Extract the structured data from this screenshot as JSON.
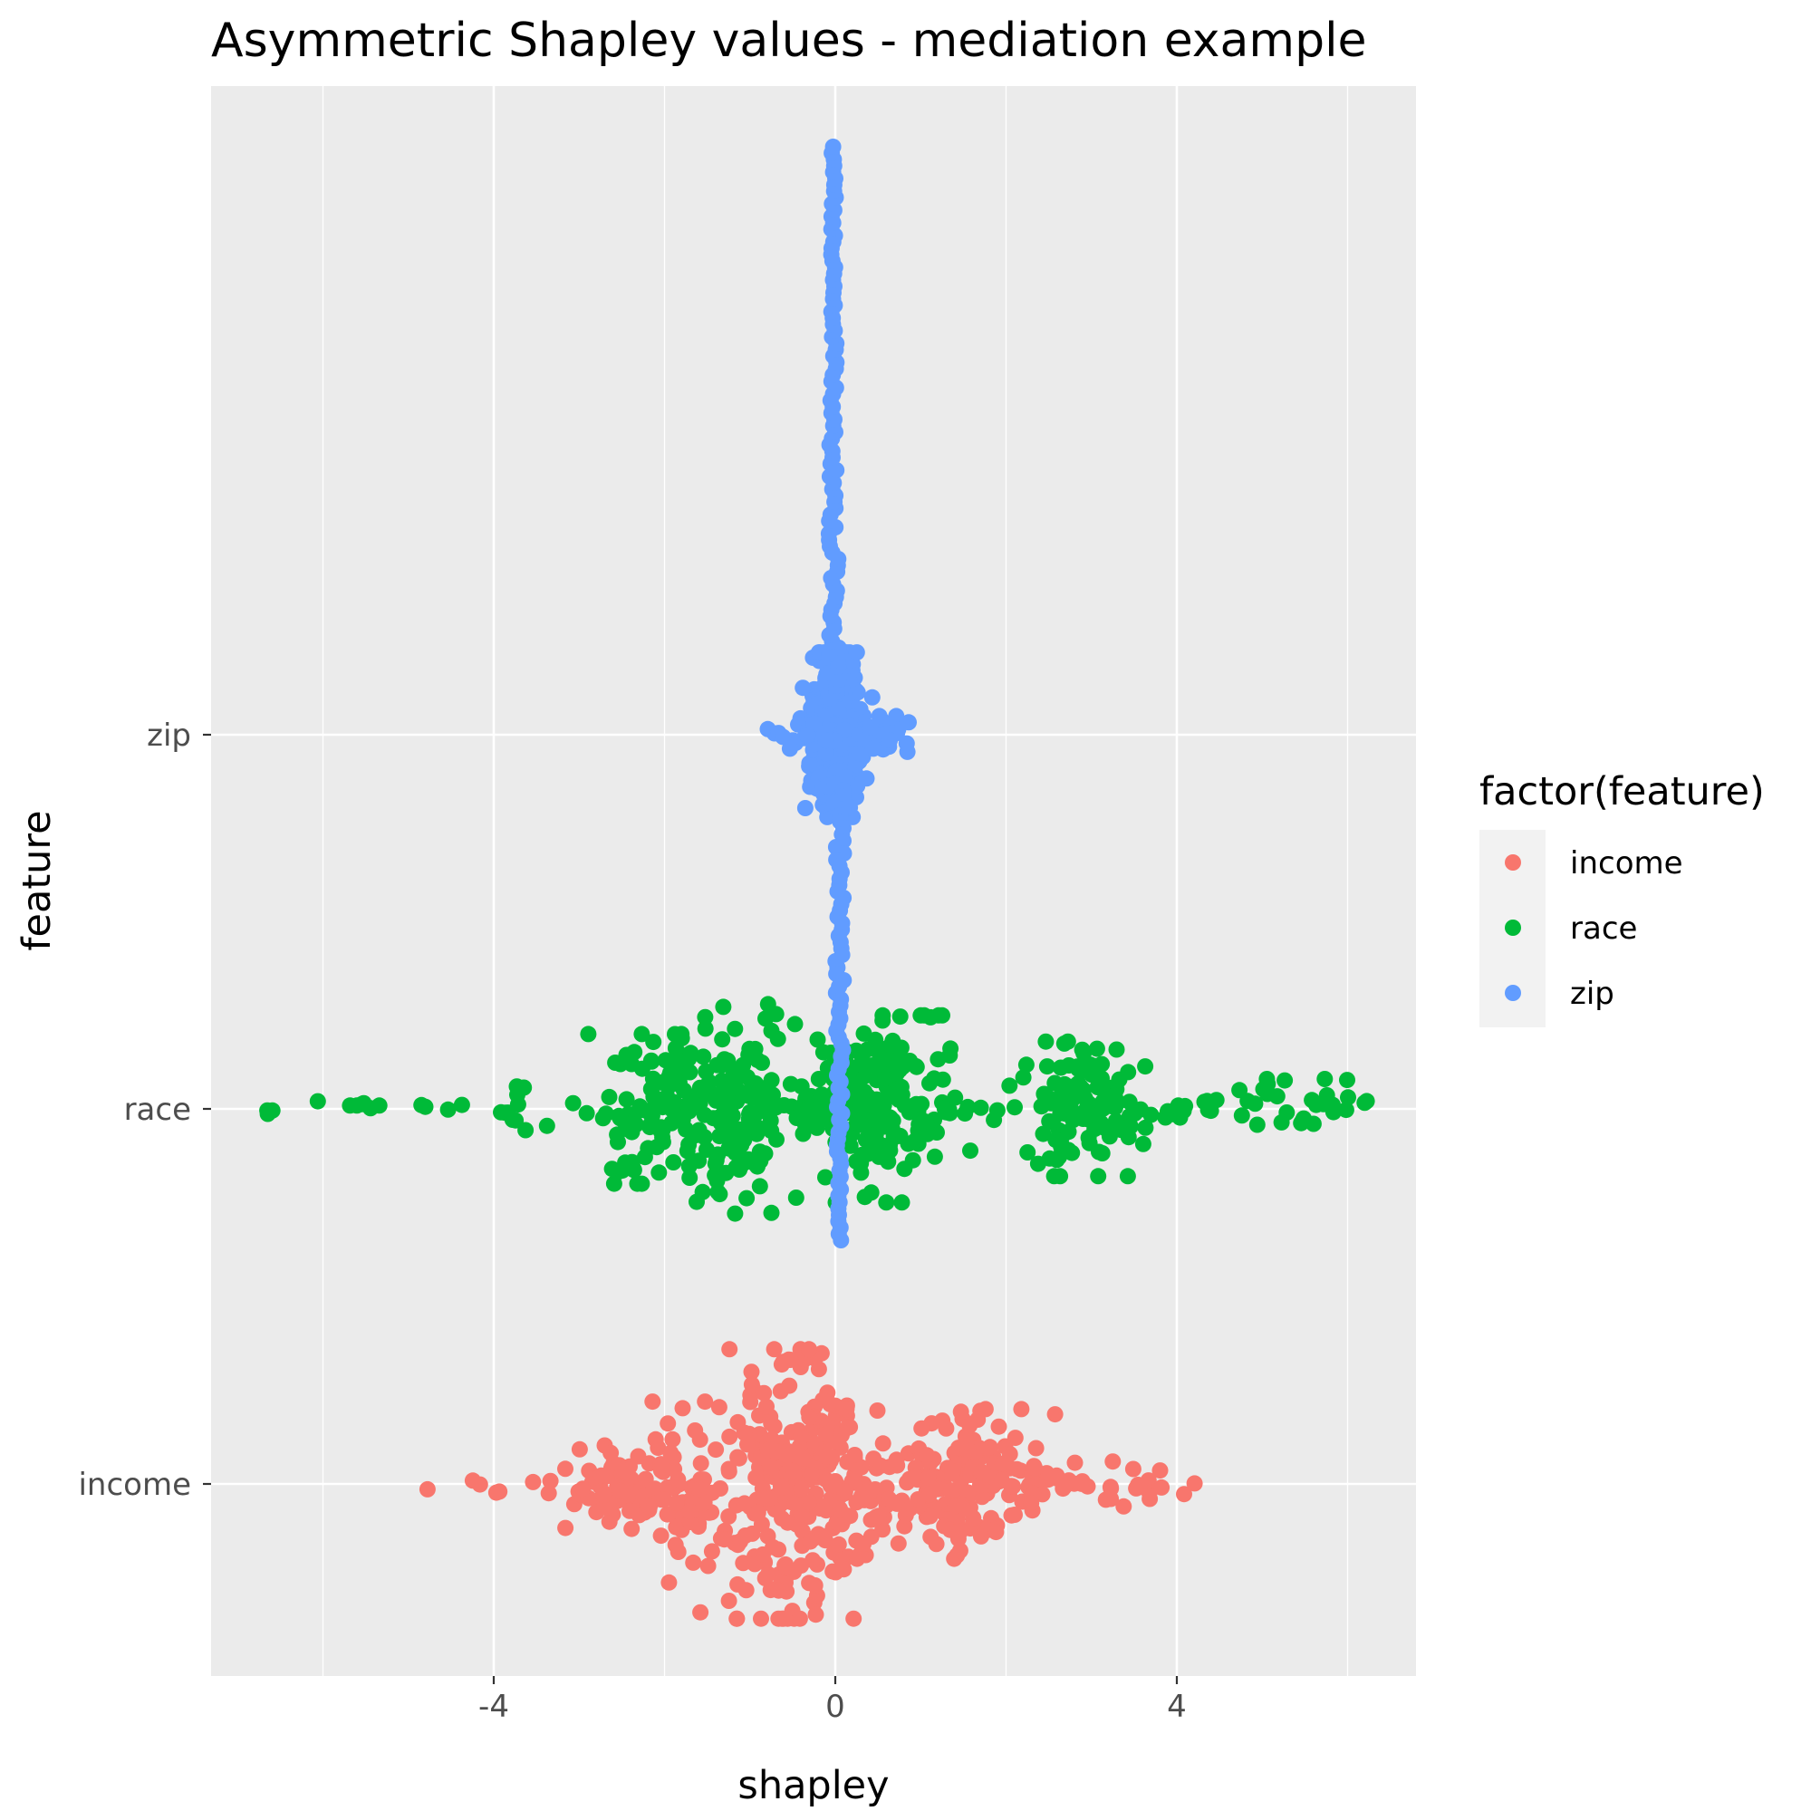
{
  "chart_data": {
    "type": "scatter",
    "title": "Asymmetric Shapley values - mediation example",
    "xlabel": "shapley",
    "ylabel": "feature",
    "x_ticks": [
      -4,
      0,
      4
    ],
    "x_tick_labels": [
      "-4",
      "0",
      "4"
    ],
    "xlim": [
      -7.3,
      6.8
    ],
    "categories": [
      "income",
      "race",
      "zip"
    ],
    "grid": true,
    "legend": {
      "title": "factor(feature)",
      "position": "right",
      "entries": [
        "income",
        "race",
        "zip"
      ]
    },
    "series": [
      {
        "name": "income",
        "color": "#F8766D",
        "category": "income",
        "clusters": [
          {
            "center": -4.8,
            "sd": 0.05,
            "n": 1,
            "spread": 0.02
          },
          {
            "center": -4.0,
            "sd": 0.15,
            "n": 4,
            "spread": 0.06
          },
          {
            "center": -3.5,
            "sd": 0.05,
            "n": 1,
            "spread": 0.02
          },
          {
            "center": -2.6,
            "sd": 0.35,
            "n": 70,
            "spread": 0.12
          },
          {
            "center": -1.6,
            "sd": 0.3,
            "n": 70,
            "spread": 0.22
          },
          {
            "center": -0.55,
            "sd": 0.35,
            "n": 220,
            "spread": 0.36
          },
          {
            "center": 0.4,
            "sd": 0.4,
            "n": 80,
            "spread": 0.2
          },
          {
            "center": 1.5,
            "sd": 0.4,
            "n": 140,
            "spread": 0.2
          },
          {
            "center": 2.6,
            "sd": 0.35,
            "n": 30,
            "spread": 0.06
          },
          {
            "center": 3.5,
            "sd": 0.25,
            "n": 14,
            "spread": 0.04
          }
        ]
      },
      {
        "name": "race",
        "color": "#00BA38",
        "category": "race",
        "clusters": [
          {
            "center": -6.6,
            "sd": 0.06,
            "n": 3,
            "spread": 0.02
          },
          {
            "center": -5.6,
            "sd": 0.25,
            "n": 7,
            "spread": 0.03
          },
          {
            "center": -4.7,
            "sd": 0.25,
            "n": 5,
            "spread": 0.02
          },
          {
            "center": -3.7,
            "sd": 0.15,
            "n": 10,
            "spread": 0.06
          },
          {
            "center": -2.2,
            "sd": 0.3,
            "n": 90,
            "spread": 0.2
          },
          {
            "center": -1.2,
            "sd": 0.3,
            "n": 130,
            "spread": 0.28
          },
          {
            "center": -0.5,
            "sd": 0.3,
            "n": 40,
            "spread": 0.08
          },
          {
            "center": 0.5,
            "sd": 0.35,
            "n": 180,
            "spread": 0.25
          },
          {
            "center": 1.5,
            "sd": 0.35,
            "n": 14,
            "spread": 0.03
          },
          {
            "center": 2.9,
            "sd": 0.35,
            "n": 120,
            "spread": 0.18
          },
          {
            "center": 4.0,
            "sd": 0.3,
            "n": 12,
            "spread": 0.04
          },
          {
            "center": 5.4,
            "sd": 0.4,
            "n": 30,
            "spread": 0.08
          },
          {
            "center": 6.2,
            "sd": 0.05,
            "n": 1,
            "spread": 0.02
          }
        ]
      },
      {
        "name": "zip",
        "color": "#619CFF",
        "category": "zip",
        "clusters": [
          {
            "center": 0.0,
            "sd": 0.13,
            "n": 500,
            "spread": 0.22
          },
          {
            "center": 0.1,
            "sd": 0.3,
            "n": 70,
            "spread": 0.05
          },
          {
            "center": -0.5,
            "sd": 0.2,
            "n": 8,
            "spread": 0.03
          },
          {
            "center": 0.5,
            "sd": 0.15,
            "n": 10,
            "spread": 0.04
          }
        ],
        "tails": {
          "upper_x": -0.02,
          "lower_x": 0.05,
          "upper_extent": 1.8,
          "lower_extent": 1.7
        }
      }
    ]
  }
}
